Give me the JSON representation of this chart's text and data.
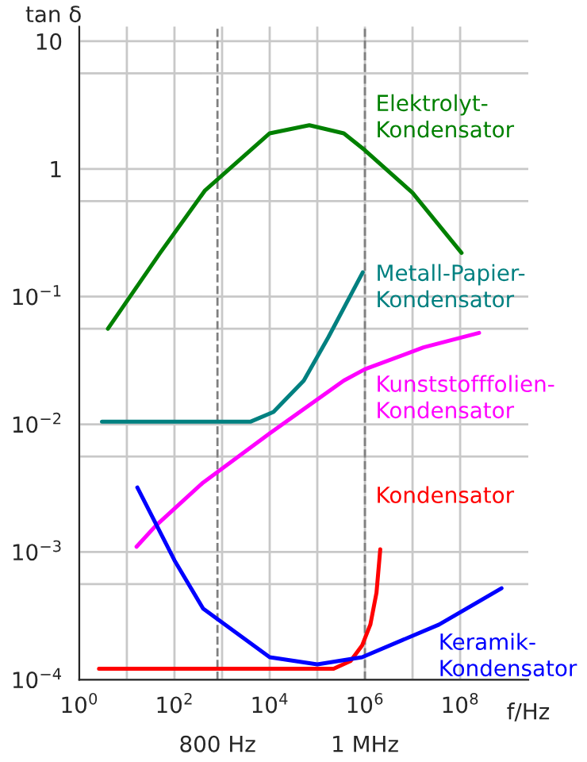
{
  "chart_data": {
    "type": "line",
    "xlabel": "f/Hz",
    "ylabel": "tan δ",
    "log": "xy",
    "grid": true,
    "legend": false,
    "marker": "none",
    "line_style": "solid",
    "xlim": [
      1,
      2700000000.0
    ],
    "ylim": [
      0.0001,
      13
    ],
    "xticks": [
      {
        "value": 1,
        "label": "10$^{0}$"
      },
      {
        "value": 10,
        "label": null
      },
      {
        "value": 100,
        "label": "10$^{2}$"
      },
      {
        "value": 1000,
        "label": null
      },
      {
        "value": 10000,
        "label": "10$^{4}$"
      },
      {
        "value": 100000,
        "label": null
      },
      {
        "value": 1000000,
        "label": "10$^{6}$"
      },
      {
        "value": 10000000,
        "label": null
      },
      {
        "value": 100000000,
        "label": "10$^{8}$"
      }
    ],
    "yticks": [
      {
        "value": 0.0001,
        "label": "10$^{−4}$"
      },
      {
        "value": 0.00056,
        "label": null
      },
      {
        "value": 0.001,
        "label": "10$^{−3}$"
      },
      {
        "value": 0.0056,
        "label": null
      },
      {
        "value": 0.01,
        "label": "10$^{−2}$"
      },
      {
        "value": 0.056,
        "label": null
      },
      {
        "value": 0.1,
        "label": "10$^{−1}$"
      },
      {
        "value": 0.56,
        "label": null
      },
      1,
      {
        "value": 5.6,
        "label": null
      },
      10
    ],
    "ref_lines": [
      {
        "axis": "x",
        "value": 800,
        "label": "800 Hz",
        "color": "#808080",
        "line_style": "dashed"
      },
      {
        "axis": "x",
        "value": 1000000,
        "label": "1 MHz",
        "color": "#808080",
        "line_style": "dashed"
      }
    ],
    "series": [
      {
        "name": "Elektrolyt-\nKondensator",
        "color": "#008000",
        "x": [
          4,
          50,
          440,
          10000,
          68000,
          360000,
          1000000,
          10000000,
          107000000
        ],
        "values": [
          0.056,
          0.22,
          0.68,
          1.9,
          2.2,
          1.9,
          1.4,
          0.65,
          0.22
        ]
      },
      {
        "name": "Metall-Papier-\nKondensator",
        "color": "#008080",
        "x": [
          3,
          4000,
          12000,
          52000,
          170000,
          900000
        ],
        "values": [
          0.0105,
          0.0105,
          0.0125,
          0.022,
          0.048,
          0.155
        ]
      },
      {
        "name": "Kunststofffolien-\nKondensator",
        "color": "#ff00ff",
        "x": [
          16,
          40,
          400,
          10000,
          360000,
          1000000,
          17000000,
          250000000
        ],
        "values": [
          0.0011,
          0.0016,
          0.0035,
          0.0085,
          0.022,
          0.027,
          0.04,
          0.052
        ]
      },
      {
        "name": "Kondensator",
        "color": "#ff0000",
        "x": [
          2.6,
          220000,
          500000,
          870000,
          1300000,
          1750000,
          2100000
        ],
        "values": [
          0.000122,
          0.000122,
          0.00014,
          0.000185,
          0.00027,
          0.00048,
          0.00105
        ]
      },
      {
        "name": "Keramik-\nKondensator",
        "color": "#0000ff",
        "x": [
          16.6,
          100,
          400,
          10000,
          100000,
          870000,
          36000000,
          740000000
        ],
        "values": [
          0.0032,
          0.00086,
          0.00036,
          0.00015,
          0.000132,
          0.00015,
          0.00027,
          0.00052
        ]
      }
    ]
  }
}
